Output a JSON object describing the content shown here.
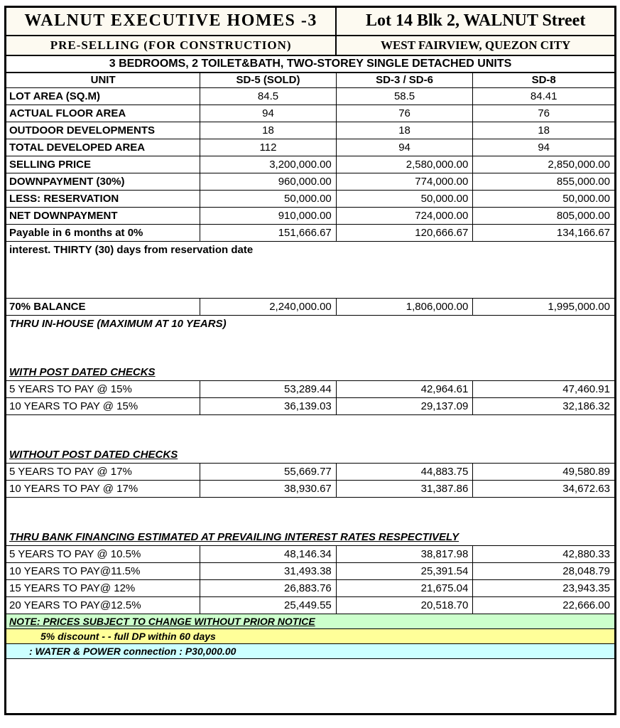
{
  "colors": {
    "border": "#000000",
    "header_bg": "#fdfaf1",
    "note_green": "#ccffcc",
    "note_yellow": "#ffff99",
    "note_cyan": "#ccffff"
  },
  "header": {
    "project": "WALNUT EXECUTIVE HOMES -3",
    "lot_address": "Lot 14 Blk 2, WALNUT Street",
    "selling_status": "PRE-SELLING (FOR CONSTRUCTION)",
    "location": "WEST FAIRVIEW, QUEZON CITY",
    "description": "3 BEDROOMS, 2 TOILET&BATH, TWO-STOREY SINGLE DETACHED UNITS"
  },
  "table": {
    "columns": [
      "UNIT",
      "SD-5 (SOLD)",
      "SD-3 / SD-6",
      "SD-8"
    ],
    "rows": [
      {
        "kind": "data",
        "label": "LOT AREA (SQ.M)",
        "bold_label": true,
        "align": "center",
        "values": [
          "84.5",
          "58.5",
          "84.41"
        ]
      },
      {
        "kind": "data",
        "label": "ACTUAL FLOOR AREA",
        "bold_label": true,
        "align": "center",
        "values": [
          "94",
          "76",
          "76"
        ]
      },
      {
        "kind": "data",
        "label": "OUTDOOR DEVELOPMENTS",
        "bold_label": true,
        "align": "center",
        "values": [
          "18",
          "18",
          "18"
        ]
      },
      {
        "kind": "data",
        "label": "TOTAL DEVELOPED AREA",
        "bold_label": true,
        "align": "center",
        "values": [
          "112",
          "94",
          "94"
        ]
      },
      {
        "kind": "data",
        "label": "SELLING PRICE",
        "bold_label": true,
        "align": "right",
        "values": [
          "3,200,000.00",
          "2,580,000.00",
          "2,850,000.00"
        ]
      },
      {
        "kind": "data",
        "label": "DOWNPAYMENT (30%)",
        "bold_label": true,
        "align": "right",
        "values": [
          "960,000.00",
          "774,000.00",
          "855,000.00"
        ]
      },
      {
        "kind": "data",
        "label": "LESS: RESERVATION",
        "bold_label": true,
        "align": "right",
        "values": [
          "50,000.00",
          "50,000.00",
          "50,000.00"
        ]
      },
      {
        "kind": "data",
        "label": "NET DOWNPAYMENT",
        "bold_label": true,
        "align": "right",
        "values": [
          "910,000.00",
          "724,000.00",
          "805,000.00"
        ]
      },
      {
        "kind": "data",
        "label": "Payable in 6 months at 0%",
        "bold_label": true,
        "align": "right",
        "values": [
          "151,666.67",
          "120,666.67",
          "134,166.67"
        ]
      },
      {
        "kind": "span",
        "text": "interest. THIRTY (30) days from reservation date",
        "italic": false,
        "underline": false
      },
      {
        "kind": "blank",
        "size": "xl"
      },
      {
        "kind": "data",
        "label": "70% BALANCE",
        "bold_label": true,
        "align": "right",
        "values": [
          "2,240,000.00",
          "1,806,000.00",
          "1,995,000.00"
        ]
      },
      {
        "kind": "span",
        "text": "THRU IN-HOUSE (MAXIMUM AT 10 YEARS)",
        "italic": true,
        "underline": false
      },
      {
        "kind": "blank",
        "size": "l"
      },
      {
        "kind": "span",
        "text": "WITH POST DATED CHECKS",
        "italic": true,
        "underline": true
      },
      {
        "kind": "data",
        "label": "5 YEARS TO PAY @ 15%",
        "bold_label": false,
        "align": "right",
        "values": [
          "53,289.44",
          "42,964.61",
          "47,460.91"
        ]
      },
      {
        "kind": "data",
        "label": "10 YEARS TO PAY @ 15%",
        "bold_label": false,
        "align": "right",
        "values": [
          "36,139.03",
          "29,137.09",
          "32,186.32"
        ]
      },
      {
        "kind": "blank",
        "size": "l"
      },
      {
        "kind": "span",
        "text": "WITHOUT POST DATED CHECKS",
        "italic": true,
        "underline": true
      },
      {
        "kind": "data",
        "label": "5 YEARS TO PAY @ 17%",
        "bold_label": false,
        "align": "right",
        "values": [
          "55,669.77",
          "44,883.75",
          "49,580.89"
        ]
      },
      {
        "kind": "data",
        "label": "10 YEARS TO PAY @ 17%",
        "bold_label": false,
        "align": "right",
        "values": [
          "38,930.67",
          "31,387.86",
          "34,672.63"
        ]
      },
      {
        "kind": "blank",
        "size": "l"
      },
      {
        "kind": "span",
        "text": "THRU BANK FINANCING ESTIMATED AT PREVAILING INTEREST RATES RESPECTIVELY",
        "italic": true,
        "underline": true
      },
      {
        "kind": "data",
        "label": "5 YEARS TO PAY @ 10.5%",
        "bold_label": false,
        "align": "right",
        "values": [
          "48,146.34",
          "38,817.98",
          "42,880.33"
        ]
      },
      {
        "kind": "data",
        "label": "10 YEARS TO PAY@11.5%",
        "bold_label": false,
        "align": "right",
        "values": [
          "31,493.38",
          "25,391.54",
          "28,048.79"
        ]
      },
      {
        "kind": "data",
        "label": "15 YEARS TO PAY@ 12%",
        "bold_label": false,
        "align": "right",
        "values": [
          "26,883.76",
          "21,675.04",
          "23,943.35"
        ]
      },
      {
        "kind": "data",
        "label": "20 YEARS TO PAY@12.5%",
        "bold_label": false,
        "align": "right",
        "values": [
          "25,449.55",
          "20,518.70",
          "22,666.00"
        ]
      },
      {
        "kind": "note",
        "text": "NOTE: PRICES SUBJECT TO CHANGE WITHOUT PRIOR NOTICE",
        "color": "note_green",
        "underline": true,
        "indent": 0
      },
      {
        "kind": "note",
        "text": "5% discount - - full DP within 60 days",
        "color": "note_yellow",
        "underline": false,
        "indent": 44
      },
      {
        "kind": "note",
        "text": ": WATER & POWER connection : P30,000.00",
        "color": "note_cyan",
        "underline": false,
        "indent": 28
      },
      {
        "kind": "blank",
        "size": "bottom"
      }
    ]
  }
}
